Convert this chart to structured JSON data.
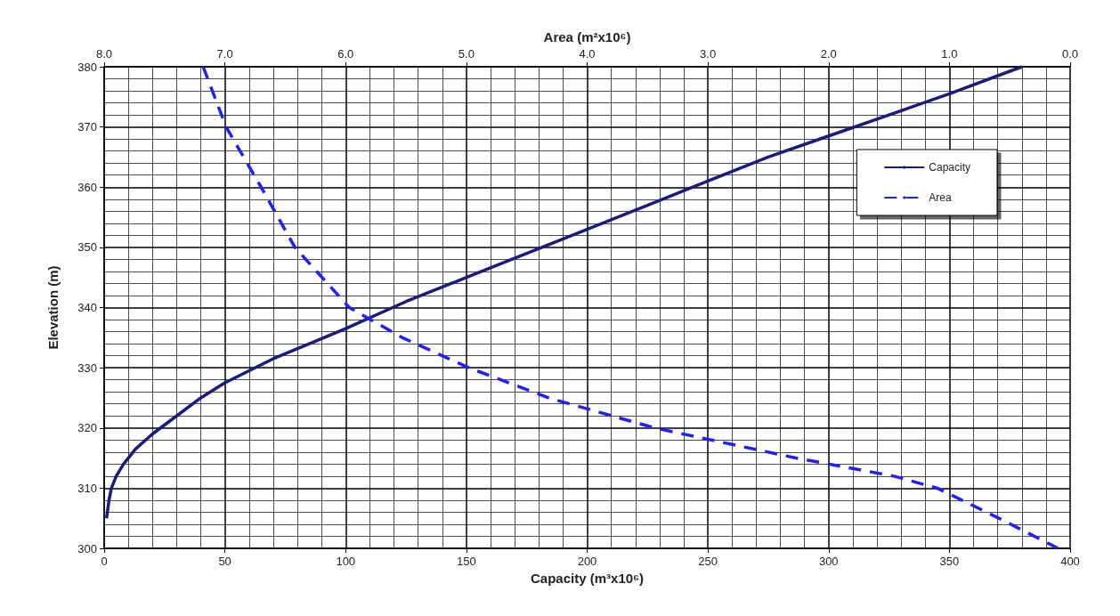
{
  "chart_data": {
    "type": "line",
    "xlabel": "Capacity (m³x10⁶)",
    "x2label": "Area (m²x10⁶)",
    "ylabel": "Elevation (m)",
    "xlim": [
      0,
      400
    ],
    "xticks": [
      0,
      50,
      100,
      150,
      200,
      250,
      300,
      350,
      400
    ],
    "x2lim": [
      8,
      0
    ],
    "x2ticks": [
      {
        "value": 8,
        "label": "8.0"
      },
      {
        "value": 7,
        "label": "7.0"
      },
      {
        "value": 6,
        "label": "6.0"
      },
      {
        "value": 5,
        "label": "5.0"
      },
      {
        "value": 4,
        "label": "4.0"
      },
      {
        "value": 3,
        "label": "3.0"
      },
      {
        "value": 2,
        "label": "2.0"
      },
      {
        "value": 1,
        "label": "1.0"
      },
      {
        "value": 0,
        "label": "0.0"
      }
    ],
    "ylim": [
      300,
      380
    ],
    "yticks": [
      300,
      310,
      320,
      330,
      340,
      350,
      360,
      370,
      380
    ],
    "grid": true,
    "legend": "right",
    "marker": "none",
    "series": [
      {
        "name": "Capacity",
        "color": "#1a1a80",
        "line_style": "solid",
        "x": [
          1,
          2,
          3,
          5,
          8,
          13,
          20,
          30,
          40,
          50,
          60,
          70,
          85,
          100,
          125,
          150,
          175,
          200,
          225,
          250,
          275,
          300,
          325,
          350,
          380
        ],
        "values": [
          305,
          308,
          310,
          312,
          314,
          316.5,
          319,
          322,
          325,
          327.5,
          329.5,
          331.5,
          334,
          336.5,
          341,
          345,
          349,
          353,
          357,
          361,
          365,
          368.5,
          372,
          375.5,
          380
        ]
      },
      {
        "name": "Area",
        "color": "#1f1fff",
        "line_style": "dashed",
        "axis": "x2",
        "x": [
          7.18,
          6.99,
          6.7,
          6.42,
          5.97,
          5.53,
          4.98,
          4.32,
          3.44,
          2.27,
          1.46,
          1.1,
          0.59,
          0.1
        ],
        "values": [
          380,
          370,
          360,
          350,
          340,
          335,
          330,
          325,
          320,
          315,
          312,
          310,
          305,
          300
        ]
      }
    ]
  }
}
